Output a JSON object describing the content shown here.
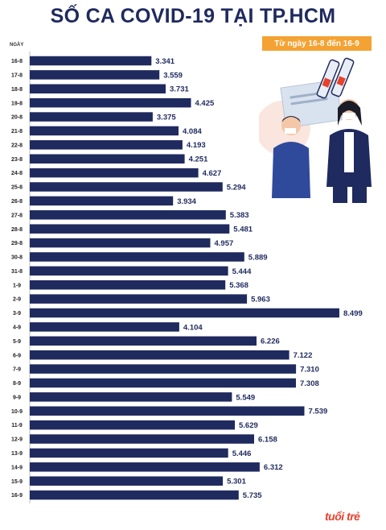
{
  "title": "SỐ CA COVID-19 TẠI TP.HCM",
  "badge": "Từ ngày 16-8 đến 16-9",
  "logo": "tuổi trẻ",
  "colors": {
    "bar": "#1f2a5e",
    "accent": "#f4a233",
    "title": "#1f2a5e",
    "logo": "#e8412c"
  },
  "chart_data": {
    "type": "bar",
    "orientation": "horizontal",
    "ylabel": "NGÀY",
    "categories": [
      "16-8",
      "17-8",
      "18-8",
      "19-8",
      "20-8",
      "21-8",
      "22-8",
      "23-8",
      "24-8",
      "25-8",
      "26-8",
      "27-8",
      "28-8",
      "29-8",
      "30-8",
      "31-8",
      "1-9",
      "2-9",
      "3-9",
      "4-9",
      "5-9",
      "6-9",
      "7-9",
      "8-9",
      "9-9",
      "10-9",
      "11-9",
      "12-9",
      "13-9",
      "14-9",
      "15-9",
      "16-9"
    ],
    "values": [
      3341,
      3559,
      3731,
      4425,
      3375,
      4084,
      4193,
      4251,
      4627,
      5294,
      3934,
      5383,
      5481,
      4957,
      5889,
      5444,
      5368,
      5963,
      8499,
      4104,
      6226,
      7122,
      7310,
      7308,
      5549,
      7539,
      5629,
      6158,
      5446,
      6312,
      5301,
      5735
    ],
    "value_labels": [
      "3.341",
      "3.559",
      "3.731",
      "4.425",
      "3.375",
      "4.084",
      "4.193",
      "4.251",
      "4.627",
      "5.294",
      "3.934",
      "5.383",
      "5.481",
      "4.957",
      "5.889",
      "5.444",
      "5.368",
      "5.963",
      "8.499",
      "4.104",
      "6.226",
      "7.122",
      "7.310",
      "7.308",
      "5.549",
      "7.539",
      "5.629",
      "6.158",
      "5.446",
      "6.312",
      "5.301",
      "5.735"
    ]
  }
}
